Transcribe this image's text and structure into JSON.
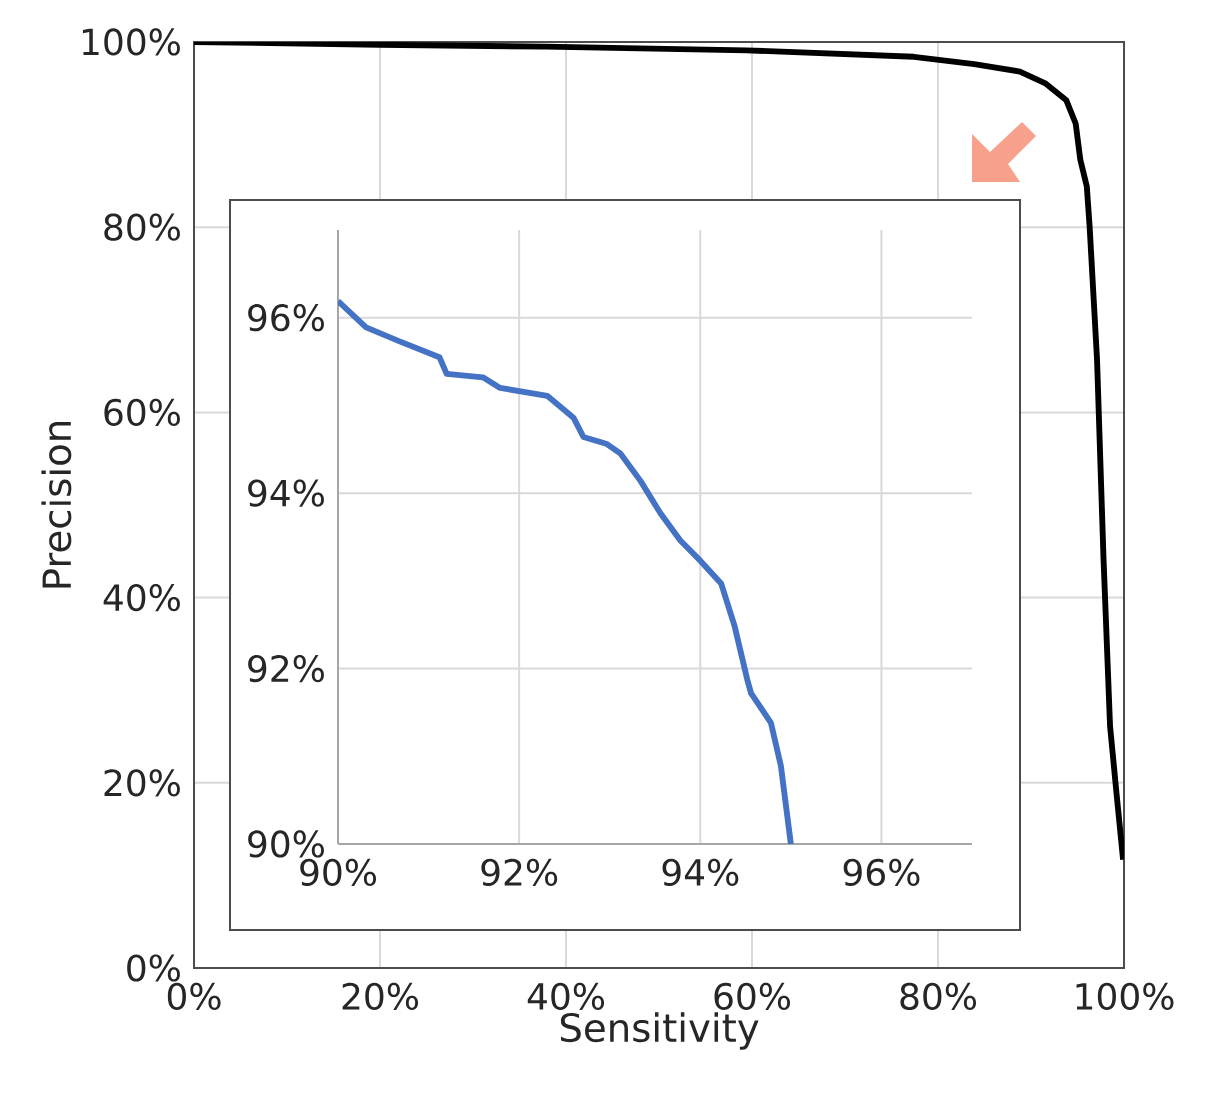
{
  "chart_data": [
    {
      "type": "line",
      "xlabel": "Sensitivity",
      "ylabel": "Precision",
      "color": "#000000",
      "grid": true,
      "x": [
        0,
        20,
        37.8,
        59.4,
        77.4,
        83.9,
        88.8,
        91.6,
        93.8,
        94.8,
        95.3,
        96.0,
        96.3,
        97.1,
        97.8,
        98.5,
        99.2,
        99.9
      ],
      "values": [
        100,
        99.7,
        99.5,
        99.1,
        98.4,
        97.6,
        96.8,
        95.5,
        93.7,
        91.2,
        87.3,
        84.4,
        80.1,
        65.7,
        44.1,
        26.1,
        18.8,
        11.7
      ],
      "xlim": [
        0,
        100
      ],
      "ylim": [
        0,
        100
      ],
      "xticks": [
        {
          "value": 0,
          "label": "0%"
        },
        {
          "value": 20,
          "label": "20%"
        },
        {
          "value": 40,
          "label": "40%"
        },
        {
          "value": 60,
          "label": "60%"
        },
        {
          "value": 80,
          "label": "80%"
        },
        {
          "value": 100,
          "label": "100%"
        }
      ],
      "yticks": [
        {
          "value": 0,
          "label": "0%"
        },
        {
          "value": 20,
          "label": "20%"
        },
        {
          "value": 40,
          "label": "40%"
        },
        {
          "value": 60,
          "label": "60%"
        },
        {
          "value": 80,
          "label": "80%"
        },
        {
          "value": 100,
          "label": "100%"
        }
      ]
    },
    {
      "type": "line",
      "color": "#4472c4",
      "grid": true,
      "x": [
        90,
        90.31,
        90.68,
        91.12,
        91.2,
        91.6,
        91.79,
        92.31,
        92.6,
        92.71,
        92.97,
        93.12,
        93.34,
        93.56,
        93.78,
        94.0,
        94.23,
        94.38,
        94.52,
        94.56,
        94.78,
        94.89,
        95.0
      ],
      "values": [
        96.19,
        95.89,
        95.73,
        95.55,
        95.36,
        95.32,
        95.2,
        95.11,
        94.86,
        94.64,
        94.56,
        94.45,
        94.14,
        93.77,
        93.46,
        93.23,
        92.97,
        92.48,
        91.87,
        91.72,
        91.38,
        90.89,
        90.0
      ],
      "xlim": [
        90,
        97
      ],
      "ylim": [
        90,
        97
      ],
      "xticks": [
        {
          "value": 90,
          "label": "90%"
        },
        {
          "value": 92,
          "label": "92%"
        },
        {
          "value": 94,
          "label": "94%"
        },
        {
          "value": 96,
          "label": "96%"
        }
      ],
      "yticks": [
        {
          "value": 90,
          "label": "90%"
        },
        {
          "value": 92,
          "label": "92%"
        },
        {
          "value": 94,
          "label": "94%"
        },
        {
          "value": 96,
          "label": "96%"
        }
      ]
    }
  ]
}
